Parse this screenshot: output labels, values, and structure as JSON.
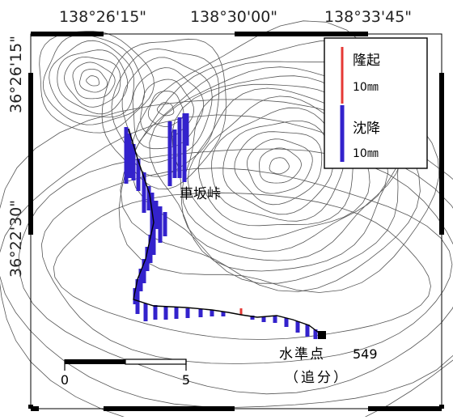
{
  "map": {
    "top_longitudes": [
      "138°26'15\"",
      "138°30'00\"",
      "138°33'45\""
    ],
    "left_latitudes": [
      "36°26'15\"",
      "36°22'30\""
    ],
    "place_label": "車坂峠",
    "benchmark_label": "水準点",
    "benchmark_number": "549",
    "benchmark_subtitle": "（追分）"
  },
  "legend": {
    "uplift_label": "隆起",
    "uplift_scale": "10㎜",
    "subsidence_label": "沈降",
    "subsidence_scale": "10㎜",
    "uplift_color": "#e53935",
    "subsidence_color": "#3322cc"
  },
  "scale_bar": {
    "start_label": "0",
    "end_label": "5"
  },
  "colors": {
    "contour": "#555555",
    "frame": "#000000",
    "route": "#000000"
  }
}
